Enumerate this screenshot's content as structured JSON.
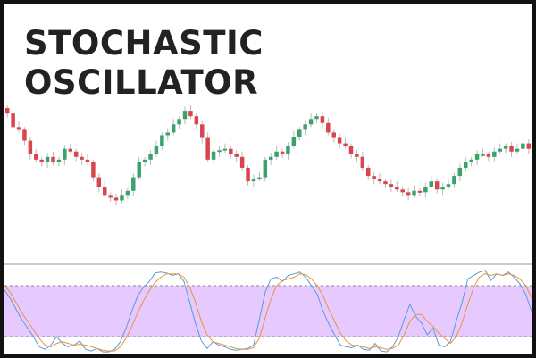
{
  "title_lines": [
    "STOCHASTIC",
    "OSCILLATOR"
  ],
  "colors": {
    "bullish": "#3aa36b",
    "bearish": "#d9454f",
    "wick": "#b9b9b9",
    "oscillator_band": "#e6c9ff",
    "percent_k_line": "#5b9bd5",
    "percent_d_line": "#e8943a",
    "separator": "#999999",
    "band_border": "#888888"
  },
  "chart_data": [
    {
      "type": "candlestick",
      "ylim": [
        0,
        100
      ],
      "grid": false,
      "closes": [
        92,
        82,
        80,
        72,
        62,
        58,
        56,
        60,
        56,
        58,
        66,
        64,
        60,
        58,
        56,
        45,
        38,
        32,
        30,
        28,
        32,
        35,
        45,
        56,
        58,
        62,
        68,
        76,
        78,
        84,
        88,
        94,
        90,
        84,
        74,
        58,
        64,
        65,
        66,
        62,
        60,
        52,
        42,
        44,
        45,
        58,
        60,
        64,
        62,
        68,
        75,
        80,
        84,
        88,
        90,
        85,
        78,
        74,
        70,
        68,
        62,
        60,
        52,
        46,
        44,
        42,
        40,
        38,
        36,
        34,
        32,
        35,
        34,
        38,
        42,
        36,
        38,
        40,
        46,
        52,
        56,
        58,
        62,
        62,
        60,
        64,
        66,
        68,
        64,
        66,
        70,
        66
      ]
    },
    {
      "type": "line",
      "ylim": [
        0,
        100
      ],
      "reference_lines": [
        20,
        80
      ],
      "grid": false,
      "series": [
        {
          "values": [
            75,
            65,
            52,
            40,
            30,
            20,
            8,
            5,
            10,
            20,
            12,
            8,
            10,
            15,
            5,
            3,
            6,
            2,
            2,
            5,
            14,
            30,
            50,
            68,
            78,
            85,
            95,
            96,
            95,
            92,
            94,
            85,
            60,
            35,
            15,
            6,
            14,
            10,
            8,
            5,
            4,
            5,
            6,
            10,
            40,
            72,
            88,
            90,
            85,
            92,
            94,
            96,
            90,
            80,
            70,
            50,
            35,
            22,
            10,
            8,
            7,
            10,
            5,
            4,
            12,
            3,
            2,
            8,
            20,
            40,
            58,
            44,
            36,
            22,
            30,
            10,
            8,
            14,
            38,
            60,
            88,
            92,
            96,
            98,
            86,
            94,
            92,
            96,
            90,
            82,
            70,
            50
          ]
        },
        {
          "values": [
            80,
            72,
            60,
            48,
            38,
            28,
            18,
            10,
            8,
            12,
            14,
            12,
            10,
            11,
            10,
            8,
            6,
            4,
            3,
            3,
            8,
            18,
            32,
            48,
            62,
            74,
            84,
            90,
            94,
            94,
            94,
            90,
            78,
            60,
            38,
            22,
            14,
            12,
            10,
            8,
            6,
            5,
            5,
            7,
            18,
            42,
            64,
            80,
            86,
            88,
            90,
            94,
            93,
            88,
            80,
            68,
            52,
            38,
            24,
            15,
            10,
            9,
            8,
            6,
            8,
            7,
            5,
            6,
            10,
            22,
            38,
            46,
            46,
            38,
            32,
            24,
            18,
            12,
            20,
            36,
            58,
            78,
            90,
            94,
            92,
            94,
            92,
            94,
            92,
            88,
            80,
            66
          ]
        }
      ]
    }
  ]
}
